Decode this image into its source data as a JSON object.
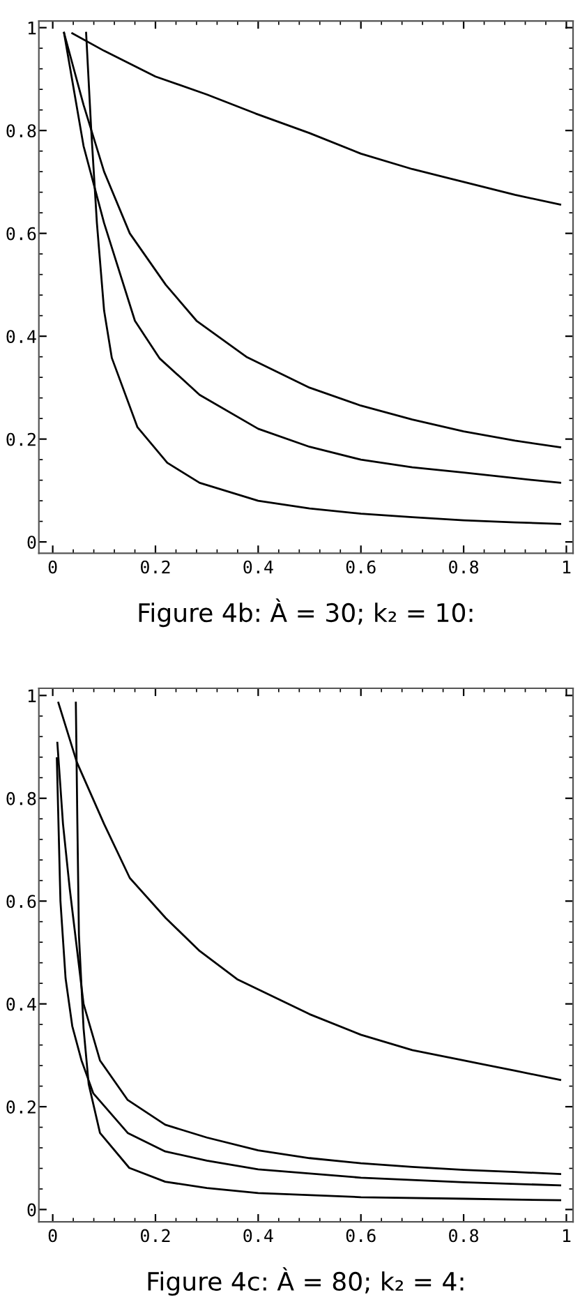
{
  "chart_data": [
    {
      "type": "line",
      "title": "Figure 4b: À = 30; k₂ = 10:",
      "xlim": [
        -0.027,
        1.013
      ],
      "ylim": [
        -0.022,
        1.013
      ],
      "xticks": [
        0,
        0.2,
        0.4,
        0.6,
        0.8,
        1
      ],
      "yticks": [
        0,
        0.2,
        0.4,
        0.6,
        0.8,
        1
      ],
      "grid": false,
      "marker": "none",
      "line_style": "solid",
      "series": [
        {
          "color": "#000000",
          "x": [
            0.038,
            0.1,
            0.2,
            0.3,
            0.395,
            0.5,
            0.6,
            0.7,
            0.8,
            0.9,
            0.988
          ],
          "values": [
            0.989,
            0.955,
            0.905,
            0.87,
            0.833,
            0.795,
            0.755,
            0.725,
            0.7,
            0.675,
            0.656
          ]
        },
        {
          "color": "#000000",
          "x": [
            0.022,
            0.06,
            0.1,
            0.15,
            0.22,
            0.28,
            0.377,
            0.5,
            0.6,
            0.7,
            0.8,
            0.9,
            0.988
          ],
          "values": [
            0.99,
            0.85,
            0.72,
            0.6,
            0.5,
            0.43,
            0.36,
            0.3,
            0.265,
            0.238,
            0.215,
            0.197,
            0.184
          ]
        },
        {
          "color": "#000000",
          "x": [
            0.022,
            0.06,
            0.1,
            0.16,
            0.208,
            0.286,
            0.4,
            0.5,
            0.6,
            0.7,
            0.8,
            0.9,
            0.988
          ],
          "values": [
            0.99,
            0.77,
            0.62,
            0.43,
            0.357,
            0.286,
            0.22,
            0.185,
            0.16,
            0.145,
            0.135,
            0.124,
            0.115
          ]
        },
        {
          "color": "#000000",
          "x": [
            0.065,
            0.075,
            0.086,
            0.1,
            0.115,
            0.165,
            0.223,
            0.286,
            0.4,
            0.5,
            0.6,
            0.7,
            0.8,
            0.9,
            0.988
          ],
          "values": [
            0.99,
            0.8,
            0.62,
            0.45,
            0.358,
            0.223,
            0.154,
            0.115,
            0.08,
            0.065,
            0.055,
            0.048,
            0.042,
            0.038,
            0.035
          ]
        }
      ]
    },
    {
      "type": "line",
      "title": "Figure 4c: À = 80; k₂ = 4:",
      "xlim": [
        -0.027,
        1.013
      ],
      "ylim": [
        -0.024,
        1.014
      ],
      "xticks": [
        0,
        0.2,
        0.4,
        0.6,
        0.8,
        1
      ],
      "yticks": [
        0,
        0.2,
        0.4,
        0.6,
        0.8,
        1
      ],
      "grid": false,
      "marker": "none",
      "line_style": "solid",
      "series": [
        {
          "color": "#000000",
          "x": [
            0.011,
            0.047,
            0.1,
            0.15,
            0.22,
            0.286,
            0.359,
            0.5,
            0.6,
            0.7,
            0.8,
            0.9,
            0.988
          ],
          "values": [
            0.986,
            0.87,
            0.75,
            0.645,
            0.567,
            0.503,
            0.448,
            0.38,
            0.34,
            0.31,
            0.29,
            0.27,
            0.252
          ]
        },
        {
          "color": "#000000",
          "x": [
            0.009,
            0.02,
            0.033,
            0.06,
            0.092,
            0.146,
            0.219,
            0.3,
            0.4,
            0.5,
            0.6,
            0.7,
            0.8,
            0.9,
            0.988
          ],
          "values": [
            0.908,
            0.75,
            0.625,
            0.4,
            0.29,
            0.213,
            0.165,
            0.14,
            0.115,
            0.1,
            0.09,
            0.083,
            0.077,
            0.073,
            0.069
          ]
        },
        {
          "color": "#000000",
          "x": [
            0.008,
            0.015,
            0.025,
            0.038,
            0.056,
            0.079,
            0.146,
            0.219,
            0.3,
            0.4,
            0.6,
            0.8,
            0.988
          ],
          "values": [
            0.878,
            0.6,
            0.45,
            0.357,
            0.29,
            0.226,
            0.149,
            0.113,
            0.095,
            0.078,
            0.062,
            0.053,
            0.047
          ]
        },
        {
          "color": "#000000",
          "x": [
            0.045,
            0.048,
            0.051,
            0.06,
            0.07,
            0.092,
            0.149,
            0.219,
            0.3,
            0.4,
            0.6,
            0.8,
            0.988
          ],
          "values": [
            0.986,
            0.75,
            0.534,
            0.353,
            0.244,
            0.149,
            0.081,
            0.054,
            0.042,
            0.032,
            0.024,
            0.021,
            0.018
          ]
        }
      ]
    }
  ]
}
